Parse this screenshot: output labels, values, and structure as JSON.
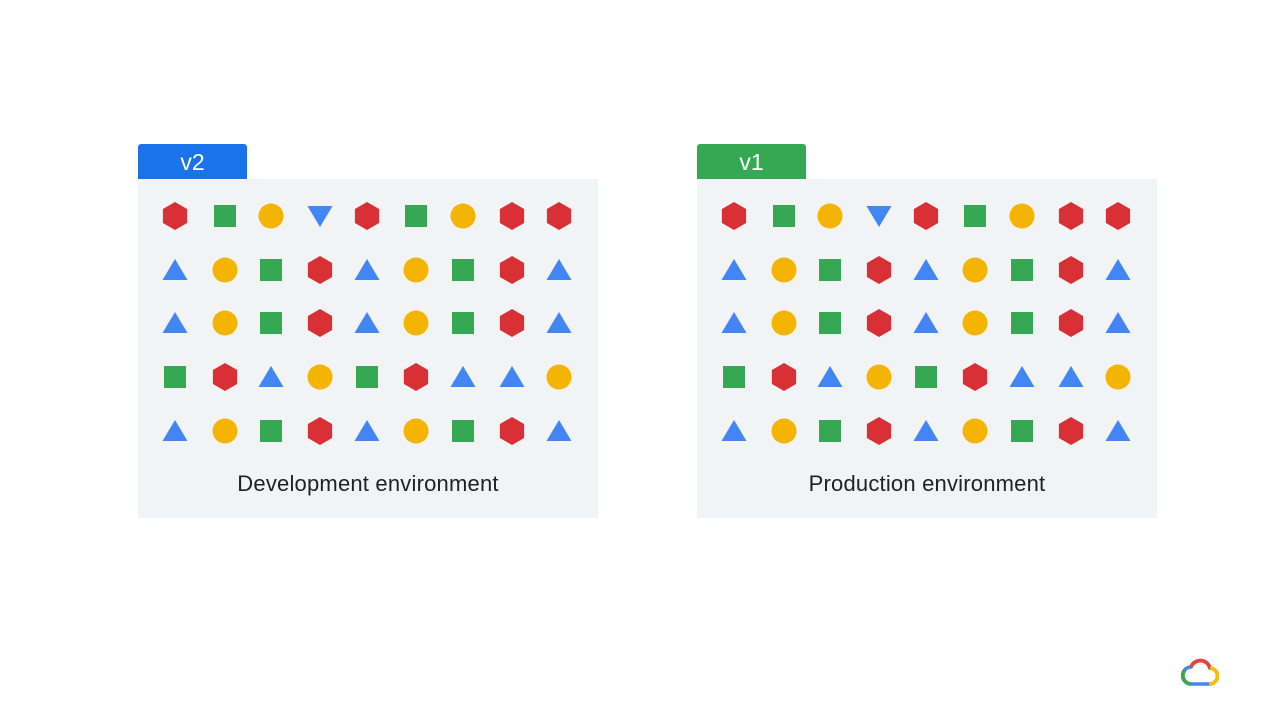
{
  "colors": {
    "red": "#d93036",
    "green": "#34a853",
    "yellow": "#f4b400",
    "blue": "#4285f4",
    "tab_blue": "#1a73e8",
    "tab_green": "#34a853",
    "panel_bg": "#f1f3f4"
  },
  "environments": [
    {
      "id": "dev",
      "version": "v2",
      "tab_color": "#1a73e8",
      "label": "Development environment",
      "grid": [
        [
          "red-hexagon",
          "green-square",
          "yellow-circle",
          "blue-triangle-down",
          "red-hexagon",
          "green-square",
          "yellow-circle",
          "red-hexagon",
          "red-hexagon"
        ],
        [
          "blue-triangle",
          "yellow-circle",
          "green-square",
          "red-hexagon",
          "blue-triangle",
          "yellow-circle",
          "green-square",
          "red-hexagon",
          "blue-triangle"
        ],
        [
          "blue-triangle",
          "yellow-circle",
          "green-square",
          "red-hexagon",
          "blue-triangle",
          "yellow-circle",
          "green-square",
          "red-hexagon",
          "blue-triangle"
        ],
        [
          "green-square",
          "red-hexagon",
          "blue-triangle",
          "yellow-circle",
          "green-square",
          "red-hexagon",
          "blue-triangle",
          "blue-triangle",
          "yellow-circle"
        ],
        [
          "blue-triangle",
          "yellow-circle",
          "green-square",
          "red-hexagon",
          "blue-triangle",
          "yellow-circle",
          "green-square",
          "red-hexagon",
          "blue-triangle"
        ]
      ]
    },
    {
      "id": "prod",
      "version": "v1",
      "tab_color": "#34a853",
      "label": "Production environment",
      "grid": [
        [
          "red-hexagon",
          "green-square",
          "yellow-circle",
          "blue-triangle-down",
          "red-hexagon",
          "green-square",
          "yellow-circle",
          "red-hexagon",
          "red-hexagon"
        ],
        [
          "blue-triangle",
          "yellow-circle",
          "green-square",
          "red-hexagon",
          "blue-triangle",
          "yellow-circle",
          "green-square",
          "red-hexagon",
          "blue-triangle"
        ],
        [
          "blue-triangle",
          "yellow-circle",
          "green-square",
          "red-hexagon",
          "blue-triangle",
          "yellow-circle",
          "green-square",
          "red-hexagon",
          "blue-triangle"
        ],
        [
          "green-square",
          "red-hexagon",
          "blue-triangle",
          "yellow-circle",
          "green-square",
          "red-hexagon",
          "blue-triangle",
          "blue-triangle",
          "yellow-circle"
        ],
        [
          "blue-triangle",
          "yellow-circle",
          "green-square",
          "red-hexagon",
          "blue-triangle",
          "yellow-circle",
          "green-square",
          "red-hexagon",
          "blue-triangle"
        ]
      ]
    }
  ],
  "logo": {
    "icon": "google-cloud-logo-icon"
  }
}
